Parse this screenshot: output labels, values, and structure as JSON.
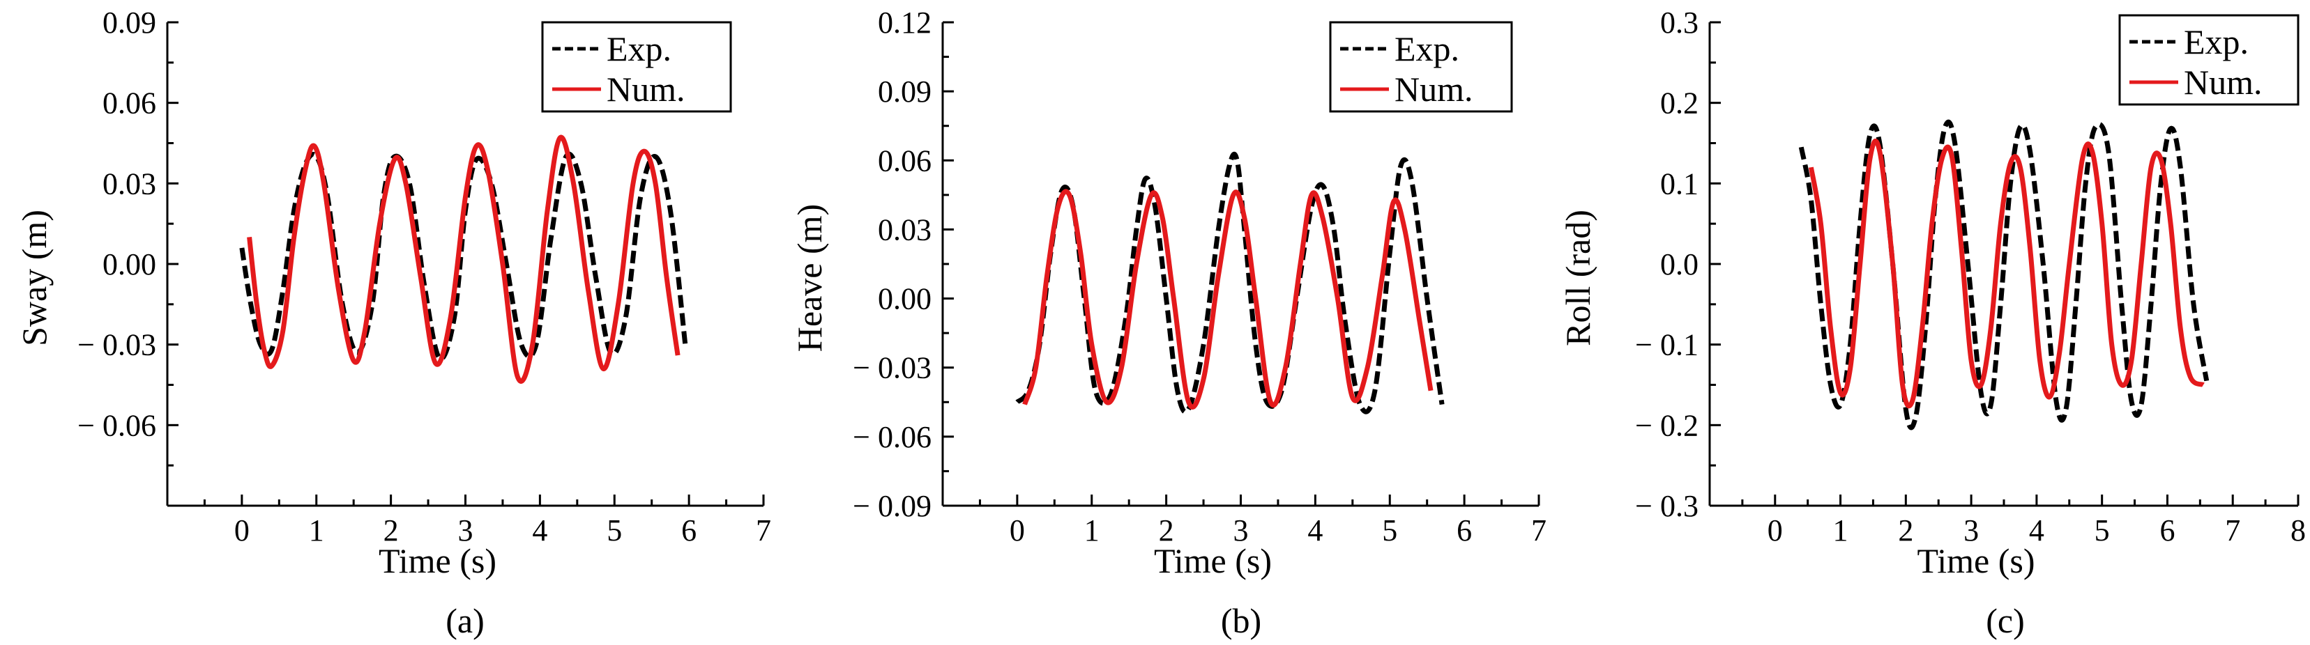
{
  "chart_data": [
    {
      "type": "line",
      "panel_label": "(a)",
      "xlabel": "Time (s)",
      "ylabel": "Sway (m)",
      "xlim": [
        -1,
        7
      ],
      "ylim": [
        -0.09,
        0.09
      ],
      "xticks": [
        0,
        1,
        2,
        3,
        4,
        5,
        6,
        7
      ],
      "yticks": [
        -0.06,
        -0.03,
        0.0,
        0.03,
        0.06,
        0.09
      ],
      "ytick_labels": [
        "− 0.06",
        "− 0.03",
        "0.00",
        "0.03",
        "0.06",
        "0.09"
      ],
      "legend_position": "top-right",
      "series": [
        {
          "name": "Exp.",
          "style": "dashed",
          "color": "#000000",
          "x": [
            0.0,
            0.12,
            0.25,
            0.4,
            0.55,
            0.7,
            0.85,
            1.0,
            1.15,
            1.35,
            1.55,
            1.75,
            1.9,
            2.05,
            2.25,
            2.45,
            2.65,
            2.85,
            3.0,
            3.15,
            3.35,
            3.55,
            3.75,
            3.95,
            4.15,
            4.35,
            4.55,
            4.75,
            4.95,
            5.15,
            5.35,
            5.55,
            5.75,
            5.95
          ],
          "y": [
            0.006,
            -0.015,
            -0.03,
            -0.032,
            -0.01,
            0.02,
            0.037,
            0.04,
            0.025,
            -0.015,
            -0.033,
            -0.015,
            0.025,
            0.04,
            0.03,
            -0.008,
            -0.035,
            -0.02,
            0.02,
            0.039,
            0.03,
            0.0,
            -0.03,
            -0.03,
            0.01,
            0.04,
            0.03,
            -0.005,
            -0.033,
            -0.02,
            0.025,
            0.04,
            0.02,
            -0.03
          ]
        },
        {
          "name": "Num.",
          "style": "solid",
          "color": "#e41a1c",
          "x": [
            0.1,
            0.2,
            0.3,
            0.4,
            0.55,
            0.7,
            0.85,
            0.97,
            1.1,
            1.3,
            1.5,
            1.65,
            1.85,
            2.05,
            2.2,
            2.4,
            2.6,
            2.8,
            3.0,
            3.15,
            3.3,
            3.5,
            3.7,
            3.9,
            4.1,
            4.27,
            4.45,
            4.65,
            4.85,
            5.05,
            5.25,
            5.4,
            5.55,
            5.7,
            5.85
          ],
          "y": [
            0.01,
            -0.015,
            -0.032,
            -0.038,
            -0.025,
            0.01,
            0.035,
            0.044,
            0.03,
            -0.01,
            -0.036,
            -0.025,
            0.015,
            0.039,
            0.03,
            -0.005,
            -0.037,
            -0.02,
            0.025,
            0.044,
            0.035,
            0.0,
            -0.042,
            -0.03,
            0.02,
            0.047,
            0.03,
            -0.01,
            -0.039,
            -0.015,
            0.03,
            0.042,
            0.03,
            -0.005,
            -0.034
          ]
        }
      ]
    },
    {
      "type": "line",
      "panel_label": "(b)",
      "xlabel": "Time (s)",
      "ylabel": "Heave (m)",
      "xlim": [
        -1,
        7
      ],
      "ylim": [
        -0.09,
        0.12
      ],
      "xticks": [
        0,
        1,
        2,
        3,
        4,
        5,
        6,
        7
      ],
      "yticks": [
        -0.09,
        -0.06,
        -0.03,
        0.0,
        0.03,
        0.06,
        0.09,
        0.12
      ],
      "ytick_labels": [
        "− 0.09",
        "− 0.06",
        "− 0.03",
        "0.00",
        "0.03",
        "0.06",
        "0.09",
        "0.12"
      ],
      "legend_position": "top-right",
      "series": [
        {
          "name": "Exp.",
          "style": "dashed",
          "color": "#000000",
          "x": [
            0.0,
            0.15,
            0.3,
            0.45,
            0.6,
            0.75,
            0.9,
            1.05,
            1.25,
            1.45,
            1.6,
            1.72,
            1.85,
            2.0,
            2.15,
            2.3,
            2.5,
            2.7,
            2.85,
            2.95,
            3.05,
            3.2,
            3.35,
            3.55,
            3.75,
            3.95,
            4.1,
            4.25,
            4.4,
            4.6,
            4.8,
            5.0,
            5.15,
            5.3,
            5.5,
            5.7
          ],
          "y": [
            -0.045,
            -0.04,
            -0.02,
            0.02,
            0.047,
            0.04,
            0.0,
            -0.04,
            -0.042,
            -0.01,
            0.03,
            0.052,
            0.04,
            0.0,
            -0.04,
            -0.048,
            -0.02,
            0.03,
            0.058,
            0.06,
            0.03,
            -0.02,
            -0.045,
            -0.04,
            0.0,
            0.04,
            0.049,
            0.03,
            -0.01,
            -0.046,
            -0.04,
            0.02,
            0.058,
            0.05,
            0.0,
            -0.046
          ]
        },
        {
          "name": "Num.",
          "style": "solid",
          "color": "#e41a1c",
          "x": [
            0.1,
            0.25,
            0.4,
            0.55,
            0.7,
            0.85,
            1.0,
            1.2,
            1.4,
            1.6,
            1.8,
            1.95,
            2.1,
            2.3,
            2.5,
            2.7,
            2.9,
            3.05,
            3.2,
            3.4,
            3.6,
            3.8,
            3.95,
            4.1,
            4.3,
            4.5,
            4.7,
            4.9,
            5.05,
            5.2,
            5.4,
            5.55
          ],
          "y": [
            -0.046,
            -0.03,
            0.01,
            0.04,
            0.045,
            0.02,
            -0.02,
            -0.045,
            -0.03,
            0.015,
            0.045,
            0.035,
            0.0,
            -0.045,
            -0.035,
            0.01,
            0.045,
            0.035,
            0.0,
            -0.045,
            -0.03,
            0.015,
            0.045,
            0.035,
            0.0,
            -0.043,
            -0.03,
            0.01,
            0.042,
            0.03,
            -0.01,
            -0.04
          ]
        }
      ]
    },
    {
      "type": "line",
      "panel_label": "(c)",
      "xlabel": "Time (s)",
      "ylabel": "Roll (rad)",
      "xlim": [
        -1,
        8
      ],
      "ylim": [
        -0.3,
        0.3
      ],
      "xticks": [
        0,
        1,
        2,
        3,
        4,
        5,
        6,
        7,
        8
      ],
      "yticks": [
        -0.3,
        -0.2,
        -0.1,
        0.0,
        0.1,
        0.2,
        0.3
      ],
      "ytick_labels": [
        "− 0.3",
        "− 0.2",
        "− 0.1",
        "0.0",
        "0.1",
        "0.2",
        "0.3"
      ],
      "legend_position": "top-right",
      "series": [
        {
          "name": "Exp.",
          "style": "dashed",
          "color": "#000000",
          "x": [
            0.4,
            0.55,
            0.7,
            0.85,
            1.0,
            1.15,
            1.3,
            1.45,
            1.6,
            1.8,
            2.0,
            2.15,
            2.3,
            2.45,
            2.6,
            2.75,
            2.95,
            3.15,
            3.3,
            3.45,
            3.6,
            3.75,
            3.9,
            4.1,
            4.3,
            4.45,
            4.6,
            4.75,
            4.9,
            5.1,
            5.3,
            5.45,
            5.6,
            5.75,
            5.9,
            6.05,
            6.2,
            6.4,
            6.6
          ],
          "y": [
            0.145,
            0.08,
            -0.05,
            -0.15,
            -0.175,
            -0.1,
            0.05,
            0.16,
            0.15,
            0.0,
            -0.18,
            -0.19,
            -0.08,
            0.08,
            0.17,
            0.15,
            0.0,
            -0.16,
            -0.175,
            -0.05,
            0.1,
            0.17,
            0.14,
            0.0,
            -0.17,
            -0.18,
            -0.05,
            0.1,
            0.17,
            0.14,
            -0.05,
            -0.17,
            -0.175,
            -0.05,
            0.1,
            0.168,
            0.12,
            -0.05,
            -0.145
          ]
        },
        {
          "name": "Num.",
          "style": "solid",
          "color": "#e41a1c",
          "x": [
            0.55,
            0.7,
            0.85,
            1.0,
            1.15,
            1.3,
            1.45,
            1.6,
            1.8,
            1.95,
            2.1,
            2.25,
            2.4,
            2.55,
            2.7,
            2.85,
            3.0,
            3.15,
            3.3,
            3.45,
            3.6,
            3.75,
            3.9,
            4.05,
            4.2,
            4.35,
            4.5,
            4.7,
            4.85,
            5.0,
            5.15,
            5.3,
            5.45,
            5.6,
            5.75,
            5.9,
            6.05,
            6.2,
            6.35,
            6.55
          ],
          "y": [
            0.12,
            0.05,
            -0.08,
            -0.16,
            -0.13,
            0.0,
            0.13,
            0.14,
            0.0,
            -0.15,
            -0.17,
            -0.08,
            0.05,
            0.13,
            0.135,
            0.02,
            -0.12,
            -0.15,
            -0.08,
            0.05,
            0.125,
            0.12,
            0.02,
            -0.12,
            -0.165,
            -0.11,
            0.0,
            0.13,
            0.14,
            0.05,
            -0.1,
            -0.15,
            -0.12,
            0.0,
            0.12,
            0.13,
            0.05,
            -0.08,
            -0.14,
            -0.15
          ]
        }
      ]
    }
  ]
}
